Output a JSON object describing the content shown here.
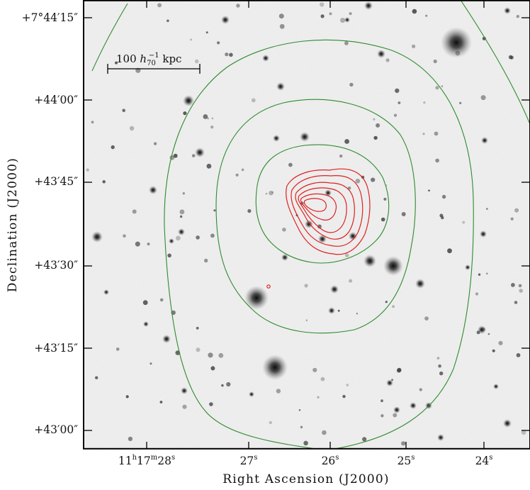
{
  "figure": {
    "scale_bar_label": {
      "value": "100",
      "h": "h",
      "sub": "70",
      "sup": "−1",
      "unit": "kpc"
    },
    "x_axis_title": "Right Ascension (J2000)",
    "y_axis_title": "Declination (J2000)",
    "x_ticks": [
      {
        "h": "11",
        "hs": "h",
        "m": "17",
        "ms": "m",
        "s": "28",
        "ss": "s"
      },
      {
        "s": "27",
        "ss": "s"
      },
      {
        "s": "26",
        "ss": "s"
      },
      {
        "s": "25",
        "ss": "s"
      },
      {
        "s": "24",
        "ss": "s"
      }
    ],
    "y_ticks": [
      "+7°44′15″",
      "+44′00″",
      "+43′45″",
      "+43′30″",
      "+43′15″",
      "+43′00″"
    ],
    "colors": {
      "frame": "#000000",
      "green_contours": "#2e8b2e",
      "red_contours": "#e01e1e",
      "sky_background": "#e6e6e6"
    }
  }
}
